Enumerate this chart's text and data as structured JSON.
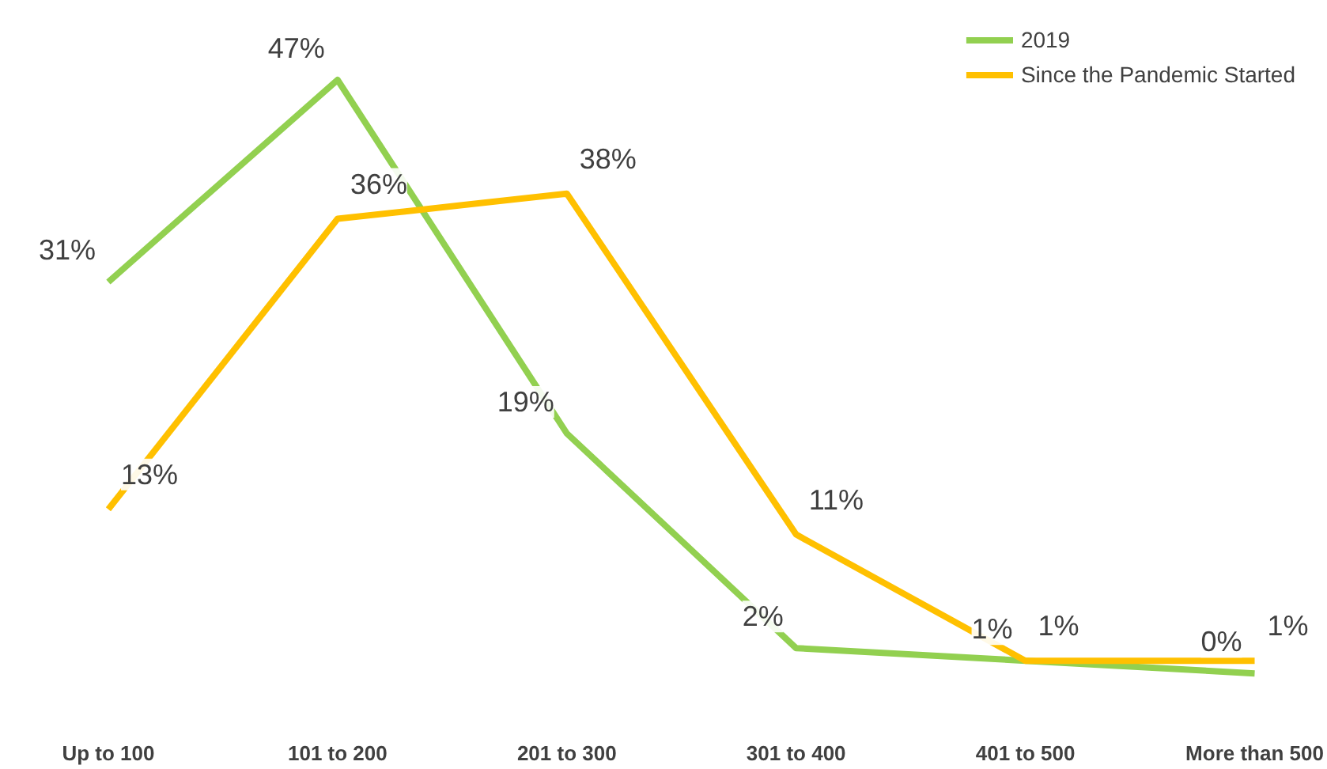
{
  "chart_data": {
    "type": "line",
    "categories": [
      "Up to 100",
      "101 to 200",
      "201 to 300",
      "301 to 400",
      "401 to 500",
      "More than 500"
    ],
    "series": [
      {
        "name": "2019",
        "color": "#92d050",
        "values": [
          31,
          47,
          19,
          2,
          1,
          0
        ],
        "value_labels": [
          "31%",
          "47%",
          "19%",
          "2%",
          "1%",
          "0%"
        ]
      },
      {
        "name": "Since the Pandemic Started",
        "color": "#ffc000",
        "values": [
          13,
          36,
          38,
          11,
          1,
          1
        ],
        "value_labels": [
          "13%",
          "36%",
          "38%",
          "11%",
          "1%",
          "1%"
        ]
      }
    ],
    "legend": "top right",
    "grid": false,
    "marker": "none",
    "line_style": "solid"
  }
}
